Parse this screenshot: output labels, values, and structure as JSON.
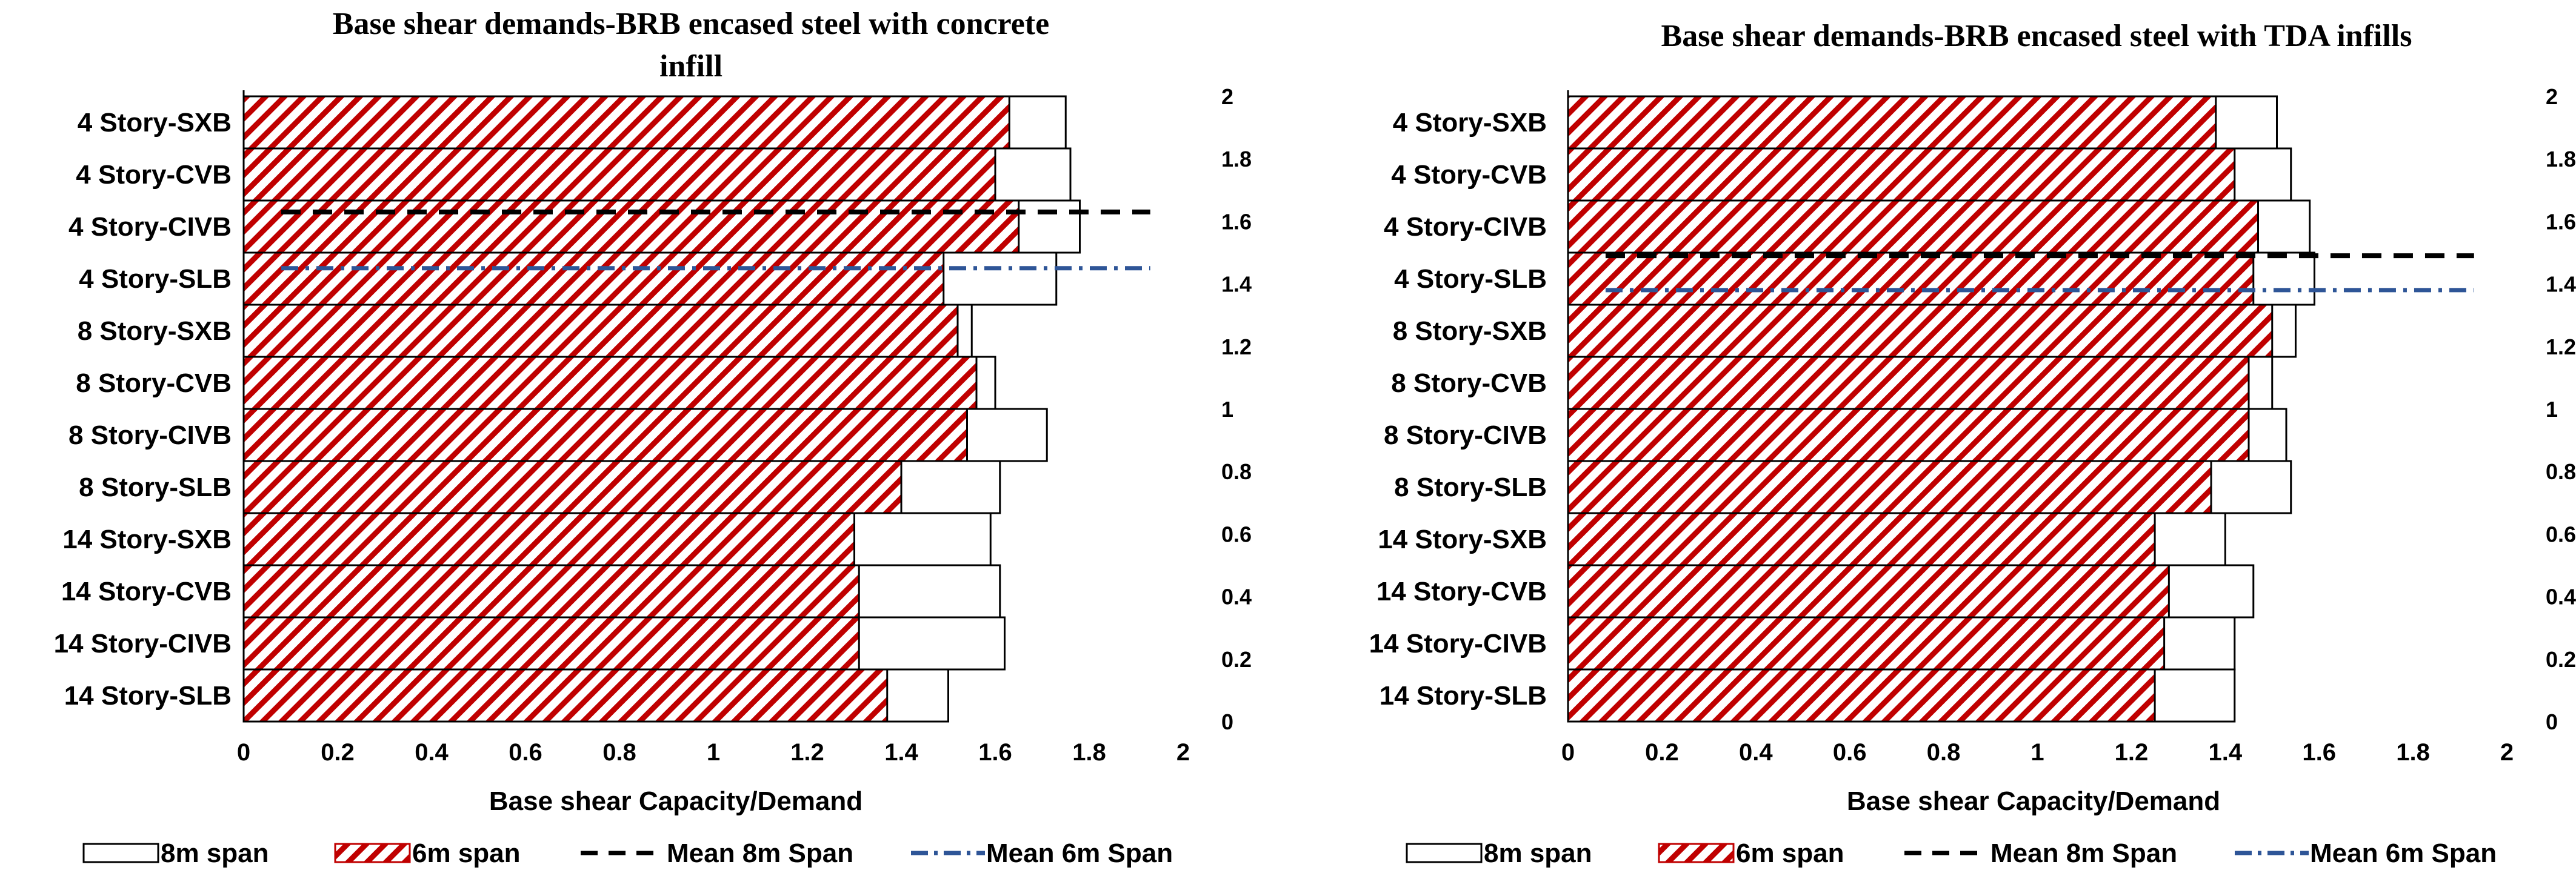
{
  "legend": {
    "span8": "8m span",
    "span6": "6m span",
    "mean8": "Mean 8m Span",
    "mean6": "Mean 6m Span"
  },
  "colors": {
    "hatch": "#c00000",
    "mean8": "#000000",
    "mean6": "#2e5597",
    "bar8_fill": "#ffffff",
    "stroke": "#000000"
  },
  "chart_data": [
    {
      "type": "bar",
      "orientation": "horizontal",
      "title": [
        "Base shear demands-BRB encased steel with concrete",
        "infill"
      ],
      "xlabel": "Base shear Capacity/Demand",
      "ylabel": "",
      "xlim": [
        0,
        2
      ],
      "xticks": [
        "0",
        "0.2",
        "0.4",
        "0.6",
        "0.8",
        "1",
        "1.2",
        "1.4",
        "1.6",
        "1.8",
        "2"
      ],
      "secondary_yticks": [
        "2",
        "1.8",
        "1.6",
        "1.4",
        "1.2",
        "1",
        "0.8",
        "0.6",
        "0.4",
        "0.2",
        "0"
      ],
      "categories": [
        "4 Story-SXB",
        "4 Story-CVB",
        "4 Story-CIVB",
        "4 Story-SLB",
        "8 Story-SXB",
        "8 Story-CVB",
        "8 Story-CIVB",
        "8 Story-SLB",
        "14 Story-SXB",
        "14 Story-CVB",
        "14 Story-CIVB",
        "14 Story-SLB"
      ],
      "series": [
        {
          "name": "8m span",
          "values": [
            1.75,
            1.76,
            1.78,
            1.73,
            1.55,
            1.6,
            1.71,
            1.61,
            1.59,
            1.61,
            1.62,
            1.5
          ]
        },
        {
          "name": "6m span",
          "values": [
            1.63,
            1.6,
            1.65,
            1.49,
            1.52,
            1.56,
            1.54,
            1.4,
            1.3,
            1.31,
            1.31,
            1.37
          ]
        }
      ],
      "mean_lines": [
        {
          "name": "Mean 8m Span",
          "value": 1.63,
          "x_range": [
            0.08,
            1.93
          ]
        },
        {
          "name": "Mean 6m Span",
          "value": 1.45,
          "x_range": [
            0.08,
            1.93
          ]
        }
      ]
    },
    {
      "type": "bar",
      "orientation": "horizontal",
      "title": [
        "Base shear demands-BRB encased steel with TDA infills"
      ],
      "xlabel": "Base shear Capacity/Demand",
      "ylabel": "",
      "xlim": [
        0,
        2
      ],
      "xticks": [
        "0",
        "0.2",
        "0.4",
        "0.6",
        "0.8",
        "1",
        "1.2",
        "1.4",
        "1.6",
        "1.8",
        "2"
      ],
      "secondary_yticks": [
        "2",
        "1.8",
        "1.6",
        "1.4",
        "1.2",
        "1",
        "0.8",
        "0.6",
        "0.4",
        "0.2",
        "0"
      ],
      "categories": [
        "4 Story-SXB",
        "4 Story-CVB",
        "4 Story-CIVB",
        "4 Story-SLB",
        "8 Story-SXB",
        "8 Story-CVB",
        "8 Story-CIVB",
        "8 Story-SLB",
        "14 Story-SXB",
        "14 Story-CVB",
        "14 Story-CIVB",
        "14 Story-SLB"
      ],
      "series": [
        {
          "name": "8m span",
          "values": [
            1.51,
            1.54,
            1.58,
            1.59,
            1.55,
            1.5,
            1.53,
            1.54,
            1.4,
            1.46,
            1.42,
            1.42
          ]
        },
        {
          "name": "6m span",
          "values": [
            1.38,
            1.42,
            1.47,
            1.46,
            1.5,
            1.45,
            1.45,
            1.37,
            1.25,
            1.28,
            1.27,
            1.25
          ]
        }
      ],
      "mean_lines": [
        {
          "name": "Mean 8m Span",
          "value": 1.49,
          "x_range": [
            0.08,
            1.93
          ]
        },
        {
          "name": "Mean 6m Span",
          "value": 1.38,
          "x_range": [
            0.08,
            1.93
          ]
        }
      ]
    }
  ]
}
